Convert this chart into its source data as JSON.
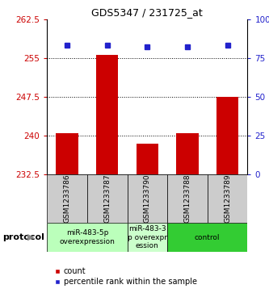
{
  "title": "GDS5347 / 231725_at",
  "samples": [
    "GSM1233786",
    "GSM1233787",
    "GSM1233790",
    "GSM1233788",
    "GSM1233789"
  ],
  "bar_values": [
    240.5,
    255.5,
    238.5,
    240.5,
    247.5
  ],
  "percentile_values": [
    83,
    83,
    82,
    82,
    83
  ],
  "ylim_left": [
    232.5,
    262.5
  ],
  "ylim_right": [
    0,
    100
  ],
  "yticks_left": [
    232.5,
    240.0,
    247.5,
    255.0,
    262.5
  ],
  "yticks_right": [
    0,
    25,
    50,
    75,
    100
  ],
  "ytick_labels_left": [
    "232.5",
    "240",
    "247.5",
    "255",
    "262.5"
  ],
  "ytick_labels_right": [
    "0",
    "25",
    "50",
    "75",
    "100%"
  ],
  "hlines": [
    240.0,
    247.5,
    255.0
  ],
  "bar_color": "#cc0000",
  "dot_color": "#2222cc",
  "bar_width": 0.55,
  "protocol_groups": [
    {
      "label": "miR-483-5p\noverexpression",
      "start": 0,
      "end": 2,
      "color": "#bbffbb"
    },
    {
      "label": "miR-483-3\np overexpr\nession",
      "start": 2,
      "end": 3,
      "color": "#ccffcc"
    },
    {
      "label": "control",
      "start": 3,
      "end": 5,
      "color": "#33cc33"
    }
  ],
  "protocol_label": "protocol",
  "legend_count_label": "count",
  "legend_percentile_label": "percentile rank within the sample",
  "axis_color_left": "#cc0000",
  "axis_color_right": "#2222cc",
  "bg_color": "#ffffff",
  "sample_box_color": "#cccccc",
  "title_fontsize": 9,
  "tick_fontsize": 7.5,
  "sample_fontsize": 6.5,
  "protocol_fontsize": 6.5,
  "legend_fontsize": 7
}
